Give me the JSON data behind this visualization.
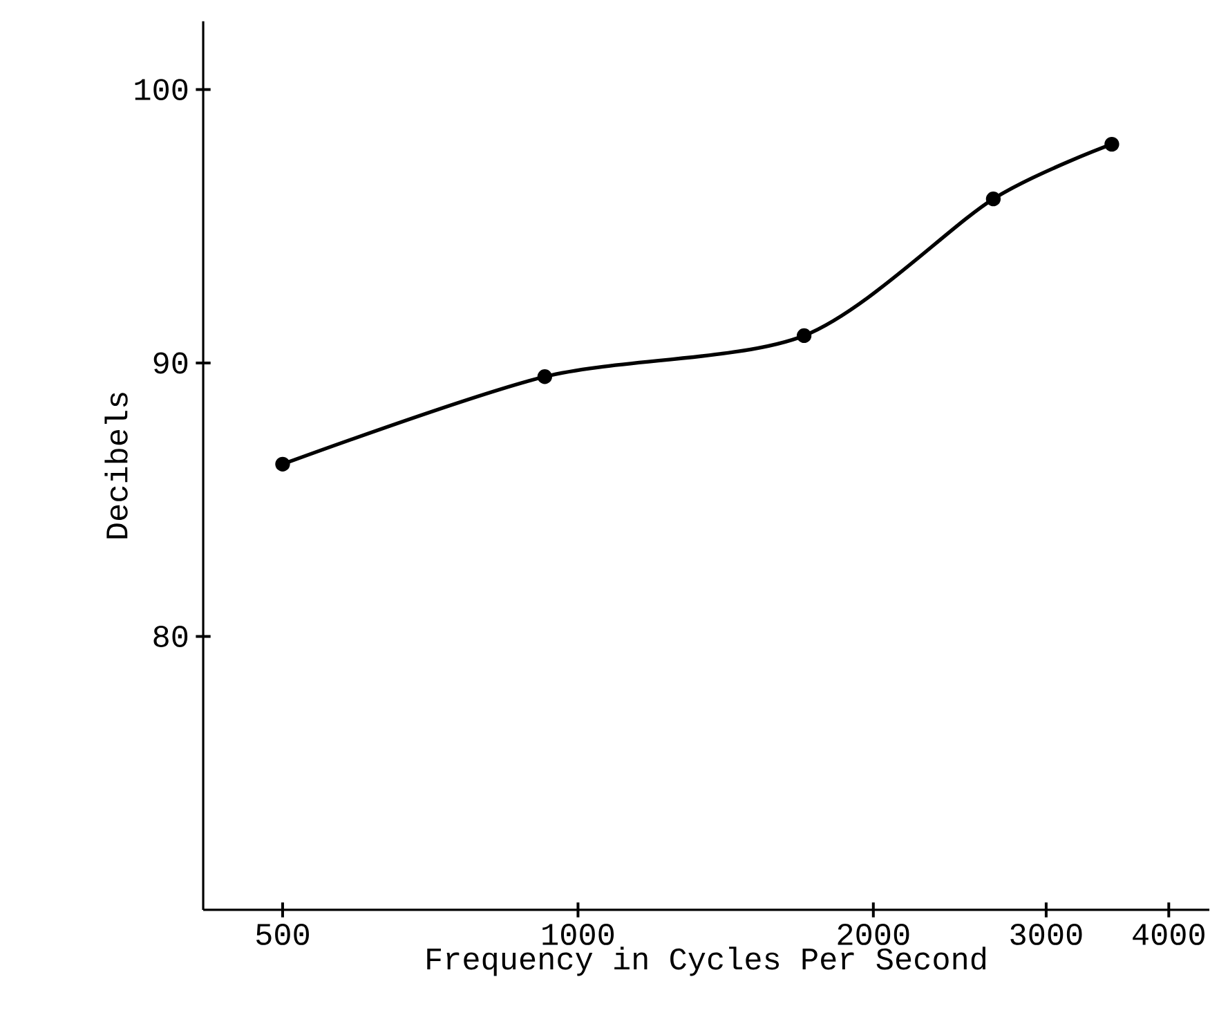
{
  "chart_data": {
    "type": "line",
    "xlabel": "Frequency in Cycles Per Second",
    "ylabel": "Decibels",
    "x": [
      500,
      925,
      1700,
      2650,
      3500
    ],
    "values": [
      86.3,
      89.5,
      91,
      96,
      98
    ],
    "color": "#000000",
    "marker": "circle",
    "line_style": "solid",
    "log": "x",
    "xlim": [
      415,
      4400
    ],
    "ylim": [
      70,
      102.5
    ],
    "xticks": [
      500,
      1000,
      2000,
      3000,
      4000
    ],
    "yticks": [
      80,
      90,
      100
    ]
  }
}
